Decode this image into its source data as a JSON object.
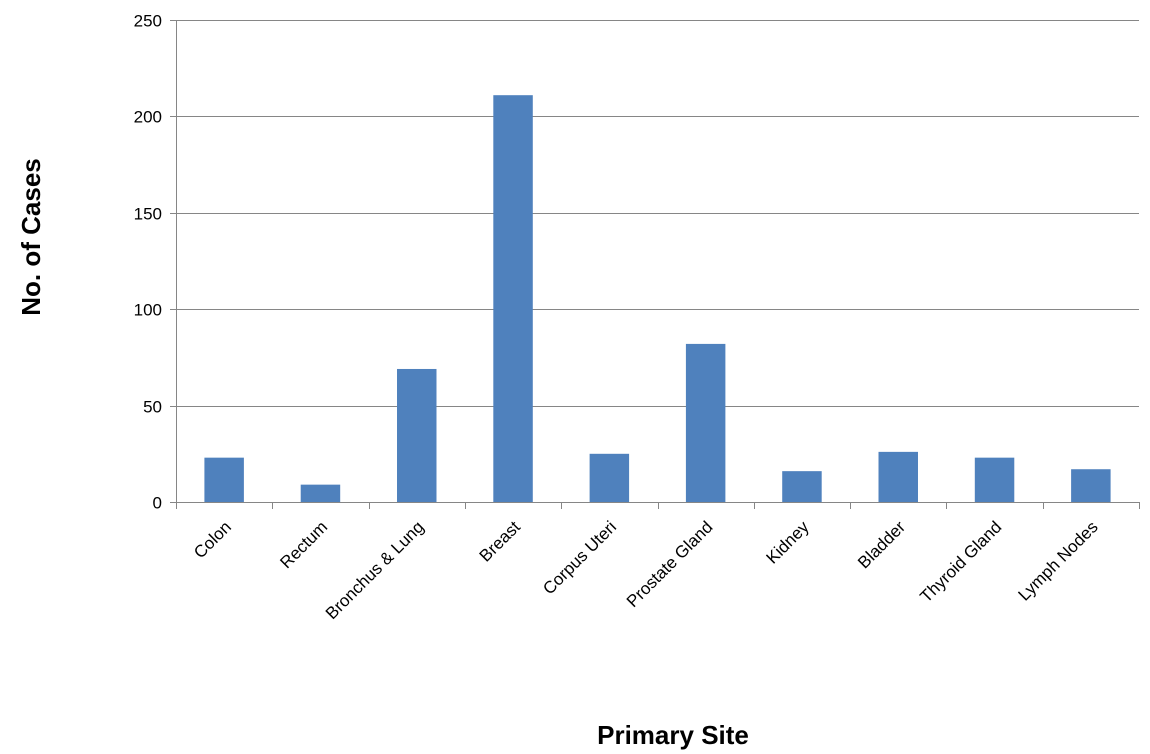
{
  "chart_data": {
    "type": "bar",
    "title": "",
    "xlabel": "Primary Site",
    "ylabel": "No. of Cases",
    "categories": [
      "Colon",
      "Rectum",
      "Bronchus & Lung",
      "Breast",
      "Corpus Uteri",
      "Prostate Gland",
      "Kidney",
      "Bladder",
      "Thyroid Gland",
      "Lymph Nodes"
    ],
    "values": [
      23,
      9,
      69,
      211,
      25,
      82,
      16,
      26,
      23,
      17
    ],
    "ylim": [
      0,
      250
    ],
    "yticks": [
      0,
      50,
      100,
      150,
      200,
      250
    ],
    "grid": true,
    "legend": "none",
    "bar_color": "#4f81bd",
    "grid_color": "#868686",
    "axis_color": "#868686"
  }
}
